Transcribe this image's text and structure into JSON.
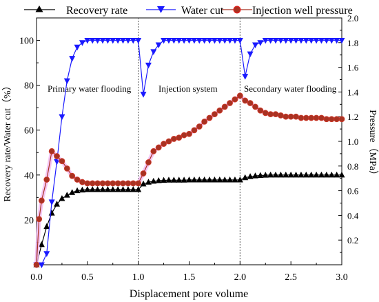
{
  "chart_data": {
    "type": "line",
    "xlabel": "Displacement pore volume",
    "ylabel_left": "Recovery rate/Water cut（%）",
    "ylabel_right": "Pressure（MPa）",
    "xlim": [
      0,
      3.0
    ],
    "ylim_left": [
      0,
      110
    ],
    "ylim_right": [
      0,
      2.0
    ],
    "x_ticks": [
      0.0,
      0.5,
      1.0,
      1.5,
      2.0,
      2.5,
      3.0
    ],
    "x_tick_labels": [
      "0.0",
      "0.5",
      "1.0",
      "1.5",
      "2.0",
      "2.5",
      "3.0"
    ],
    "y_left_ticks": [
      20,
      40,
      60,
      80,
      100
    ],
    "y_left_tick_labels": [
      "20",
      "40",
      "60",
      "80",
      "100"
    ],
    "y_right_ticks": [
      0.2,
      0.4,
      0.6,
      0.8,
      1.0,
      1.2,
      1.4,
      1.6,
      1.8,
      2.0
    ],
    "y_right_tick_labels": [
      "0.2",
      "0.4",
      "0.6",
      "0.8",
      "1.0",
      "1.2",
      "1.4",
      "1.6",
      "1.8",
      "2.0"
    ],
    "grid": false,
    "legend_position": "top",
    "stage_dividers": [
      1.0,
      2.0
    ],
    "annotations": [
      {
        "text": "Primary water flooding",
        "x": 0.5,
        "y": 80
      },
      {
        "text": "Injection system",
        "x": 1.5,
        "y": 80
      },
      {
        "text": "Secondary water flooding",
        "x": 2.5,
        "y": 80
      }
    ],
    "series": [
      {
        "name": "Recovery rate",
        "axis": "left",
        "color": "#000000",
        "marker": "triangle-up",
        "x": [
          0.0,
          0.05,
          0.1,
          0.15,
          0.2,
          0.25,
          0.3,
          0.35,
          0.4,
          0.45,
          0.5,
          0.55,
          0.6,
          0.65,
          0.7,
          0.75,
          0.8,
          0.85,
          0.9,
          0.95,
          1.0,
          1.05,
          1.1,
          1.15,
          1.2,
          1.25,
          1.3,
          1.35,
          1.4,
          1.45,
          1.5,
          1.55,
          1.6,
          1.65,
          1.7,
          1.75,
          1.8,
          1.85,
          1.9,
          1.95,
          2.0,
          2.05,
          2.1,
          2.15,
          2.2,
          2.25,
          2.3,
          2.35,
          2.4,
          2.45,
          2.5,
          2.55,
          2.6,
          2.65,
          2.7,
          2.75,
          2.8,
          2.85,
          2.9,
          2.95,
          3.0
        ],
        "y": [
          0,
          9,
          17,
          23,
          27,
          29.5,
          31,
          32.2,
          33,
          33.3,
          33.5,
          33.5,
          33.5,
          33.5,
          33.5,
          33.5,
          33.5,
          33.5,
          33.5,
          33.5,
          33.5,
          36,
          36.8,
          37.2,
          37.5,
          37.6,
          37.7,
          37.7,
          37.7,
          37.7,
          37.8,
          37.8,
          37.8,
          37.8,
          37.8,
          37.8,
          37.8,
          37.8,
          37.8,
          37.8,
          37.8,
          38.8,
          39.3,
          39.6,
          39.8,
          39.9,
          40,
          40,
          40,
          40,
          40,
          40,
          40,
          40,
          40,
          40,
          40,
          40,
          40,
          40,
          40
        ]
      },
      {
        "name": "Water cut",
        "axis": "left",
        "color": "#1a1aff",
        "marker": "triangle-down",
        "x": [
          0.0,
          0.05,
          0.1,
          0.15,
          0.2,
          0.25,
          0.3,
          0.35,
          0.4,
          0.45,
          0.5,
          0.55,
          0.6,
          0.65,
          0.7,
          0.75,
          0.8,
          0.85,
          0.9,
          0.95,
          1.0,
          1.05,
          1.1,
          1.15,
          1.2,
          1.25,
          1.3,
          1.35,
          1.4,
          1.45,
          1.5,
          1.55,
          1.6,
          1.65,
          1.7,
          1.75,
          1.8,
          1.85,
          1.9,
          1.95,
          2.0,
          2.05,
          2.1,
          2.15,
          2.2,
          2.25,
          2.3,
          2.35,
          2.4,
          2.45,
          2.5,
          2.55,
          2.6,
          2.65,
          2.7,
          2.75,
          2.8,
          2.85,
          2.9,
          2.95,
          3.0
        ],
        "y": [
          0,
          0,
          5,
          28,
          46,
          66,
          82,
          92,
          97,
          99,
          100,
          100,
          100,
          100,
          100,
          100,
          100,
          100,
          100,
          100,
          100,
          76,
          89,
          95,
          98,
          100,
          100,
          100,
          100,
          100,
          100,
          100,
          100,
          100,
          100,
          100,
          100,
          100,
          100,
          100,
          100,
          84,
          94,
          98,
          99,
          100,
          100,
          100,
          100,
          100,
          100,
          100,
          100,
          100,
          100,
          100,
          100,
          100,
          100,
          100,
          100
        ]
      },
      {
        "name": "Injection well pressure",
        "axis": "right",
        "color": "#a83222",
        "marker": "circle",
        "x": [
          0.0,
          0.025,
          0.05,
          0.1,
          0.15,
          0.2,
          0.25,
          0.3,
          0.35,
          0.4,
          0.45,
          0.5,
          0.55,
          0.6,
          0.65,
          0.7,
          0.75,
          0.8,
          0.85,
          0.9,
          0.95,
          1.0,
          1.05,
          1.1,
          1.15,
          1.2,
          1.25,
          1.3,
          1.35,
          1.4,
          1.45,
          1.5,
          1.55,
          1.6,
          1.65,
          1.7,
          1.75,
          1.8,
          1.85,
          1.9,
          1.95,
          2.0,
          2.05,
          2.1,
          2.15,
          2.2,
          2.25,
          2.3,
          2.35,
          2.4,
          2.45,
          2.5,
          2.55,
          2.6,
          2.65,
          2.7,
          2.75,
          2.8,
          2.85,
          2.9,
          2.95,
          3.0
        ],
        "y": [
          0.0,
          0.37,
          0.52,
          0.69,
          0.92,
          0.88,
          0.84,
          0.78,
          0.72,
          0.69,
          0.67,
          0.66,
          0.66,
          0.66,
          0.66,
          0.66,
          0.66,
          0.66,
          0.66,
          0.66,
          0.66,
          0.66,
          0.74,
          0.83,
          0.92,
          0.95,
          0.98,
          1.0,
          1.02,
          1.03,
          1.05,
          1.06,
          1.09,
          1.12,
          1.16,
          1.19,
          1.22,
          1.25,
          1.28,
          1.31,
          1.34,
          1.37,
          1.33,
          1.31,
          1.28,
          1.25,
          1.23,
          1.22,
          1.22,
          1.21,
          1.2,
          1.2,
          1.2,
          1.19,
          1.19,
          1.19,
          1.19,
          1.19,
          1.18,
          1.18,
          1.18,
          1.18
        ]
      }
    ]
  }
}
